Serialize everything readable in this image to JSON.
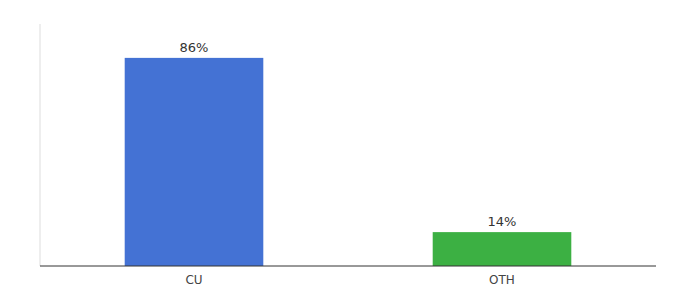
{
  "chart_data": {
    "type": "bar",
    "categories": [
      "CU",
      "OTH"
    ],
    "values": [
      86,
      14
    ],
    "value_labels": [
      "86%",
      "14%"
    ],
    "colors": [
      "#4472d4",
      "#3cb043"
    ],
    "ylim": [
      0,
      100
    ],
    "data_labels": true,
    "tick_labels": "x"
  }
}
